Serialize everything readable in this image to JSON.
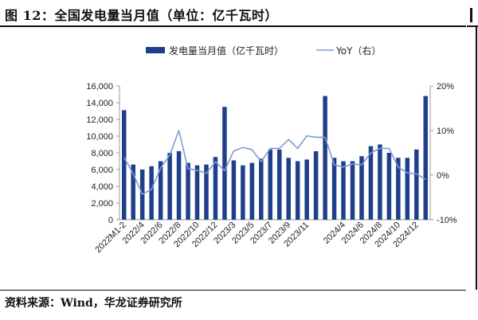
{
  "figure": {
    "title": "图 12：全国发电量当月值（单位：亿千瓦时）",
    "source": "资料来源：Wind，华龙证券研究所"
  },
  "colors": {
    "bar": "#1f3f88",
    "line": "#7f9ad8",
    "axis": "#999999"
  },
  "chart_data": {
    "type": "bar",
    "legend_position": "top",
    "grid": false,
    "ylim_left": [
      0,
      16000
    ],
    "ylim_right": [
      -10,
      20
    ],
    "left_ticks": [
      "0",
      "2,000",
      "4,000",
      "6,000",
      "8,000",
      "10,000",
      "12,000",
      "14,000",
      "16,000"
    ],
    "right_ticks": [
      "-10%",
      "0%",
      "10%",
      "20%"
    ],
    "x_tick_labels": [
      "2022M1-2",
      "2022/4",
      "2022/6",
      "2022/8",
      "2022/10",
      "2022/12",
      "2023/3",
      "2023/5",
      "2023/7",
      "2023/9",
      "2023/11",
      "2024/2",
      "2024/4",
      "2024/6",
      "2024/8",
      "2024/10",
      "2024/12"
    ],
    "categories": [
      "2022M1-2",
      "2022/3",
      "2022/4",
      "2022/5",
      "2022/6",
      "2022/7",
      "2022/8",
      "2022/9",
      "2022/10",
      "2022/11",
      "2022/12",
      "2023M1-2",
      "2023/3",
      "2023/4",
      "2023/5",
      "2023/6",
      "2023/7",
      "2023/8",
      "2023/9",
      "2023/10",
      "2023/11",
      "2023/12",
      "2024M1-2",
      "2024/3",
      "2024/4",
      "2024/5",
      "2024/6",
      "2024/7",
      "2024/8",
      "2024/9",
      "2024/10",
      "2024/11",
      "2024/12",
      "2025M1-2"
    ],
    "series": [
      {
        "name": "发电量当月值（亿千瓦时）",
        "axis": "left",
        "kind": "bar",
        "values": [
          13100,
          6600,
          6000,
          6400,
          7000,
          8000,
          8200,
          6800,
          6500,
          6600,
          7500,
          13500,
          7100,
          6500,
          6800,
          7300,
          8400,
          8400,
          7400,
          7000,
          7200,
          8200,
          14800,
          7400,
          7000,
          7000,
          7600,
          8800,
          9000,
          8000,
          7400,
          7400,
          8400,
          14800
        ]
      },
      {
        "name": "YoY（右）",
        "axis": "right",
        "kind": "line",
        "values": [
          4.0,
          0.3,
          -4.3,
          -3.2,
          1.6,
          4.5,
          10.0,
          1.4,
          1.1,
          0.4,
          3.0,
          1.0,
          5.4,
          6.2,
          5.7,
          3.0,
          6.0,
          6.0,
          8.0,
          6.0,
          8.8,
          8.5,
          8.5,
          2.3,
          1.8,
          2.5,
          2.3,
          5.0,
          6.0,
          6.0,
          1.8,
          0.5,
          0.3,
          -1.0
        ]
      }
    ]
  }
}
